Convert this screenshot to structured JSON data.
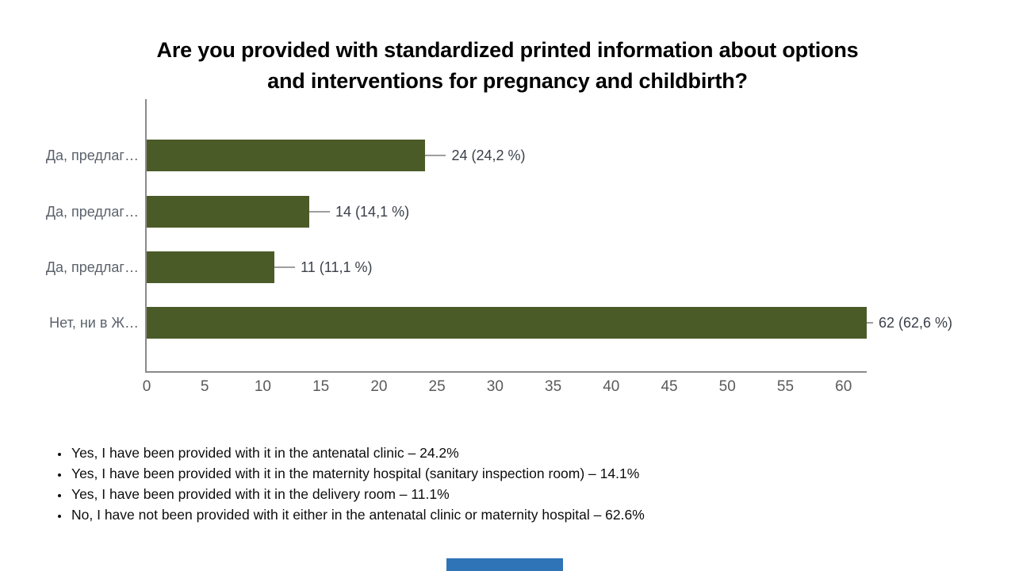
{
  "slide": {
    "title_lines": [
      "Are you provided with standardized printed information about options",
      "and interventions for pregnancy and childbirth?"
    ],
    "footer_accent_color": "#2e74b6"
  },
  "chart_data": {
    "type": "bar",
    "orientation": "horizontal",
    "title": "Are you provided with standardized printed information about options and interventions for pregnancy and childbirth?",
    "categories": [
      "Да, предлаг…",
      "Да, предлаг…",
      "Да, предлаг…",
      "Нет, ни в Ж…"
    ],
    "values": [
      24,
      14,
      11,
      62
    ],
    "value_labels": [
      "24 (24,2 %)",
      "14 (14,1 %)",
      "11 (11,1 %)",
      "62 (62,6 %)"
    ],
    "percentages": [
      24.2,
      14.1,
      11.1,
      62.6
    ],
    "x_ticks": [
      0,
      5,
      10,
      15,
      20,
      25,
      30,
      35,
      40,
      45,
      50,
      55,
      60
    ],
    "xlim": [
      0,
      62
    ],
    "grid": false,
    "legend": false,
    "bar_color": "#4b5b28",
    "axis_color": "#8a8a8a",
    "tick_label_color": "#5a5a5a",
    "category_label_color": "#5b626b",
    "value_label_color": "#3a3f4a",
    "connector_color": "#9e9e9e"
  },
  "bullets": [
    "Yes, I have been provided with it in the antenatal clinic – 24.2%",
    "Yes, I have been provided with it in the maternity hospital (sanitary inspection room) – 14.1%",
    "Yes, I have been provided with it in the delivery room – 11.1%",
    "No, I have not been provided with it either in the antenatal clinic or maternity hospital – 62.6%"
  ]
}
